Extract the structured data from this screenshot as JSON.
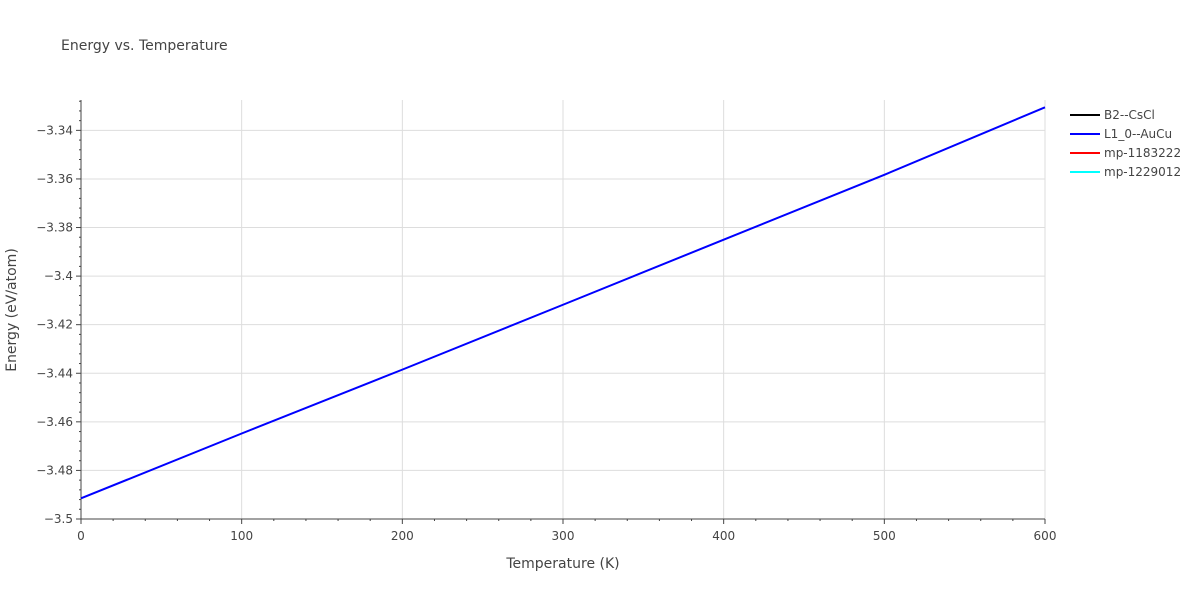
{
  "chart_data": {
    "type": "line",
    "title": "Energy vs. Temperature",
    "xlabel": "Temperature (K)",
    "ylabel": "Energy (eV/atom)",
    "xlim": [
      0,
      600
    ],
    "ylim": [
      -3.5,
      -3.3275
    ],
    "x_ticks": [
      0,
      100,
      200,
      300,
      400,
      500,
      600
    ],
    "x_tick_labels": [
      "0",
      "100",
      "200",
      "300",
      "400",
      "500",
      "600"
    ],
    "y_ticks": [
      -3.5,
      -3.48,
      -3.46,
      -3.44,
      -3.42,
      -3.4,
      -3.38,
      -3.36,
      -3.34
    ],
    "y_tick_labels": [
      "−3.5",
      "−3.48",
      "−3.46",
      "−3.44",
      "−3.42",
      "−3.4",
      "−3.38",
      "−3.36",
      "−3.34"
    ],
    "grid": true,
    "legend_position": "top-right, outside plot",
    "series": [
      {
        "name": "B2--CsCl",
        "color": "#000000",
        "x": [],
        "y": []
      },
      {
        "name": "L1_0--AuCu",
        "color": "#0000ff",
        "x": [
          0,
          100,
          200,
          300,
          400,
          500,
          600
        ],
        "y": [
          -3.4915,
          -3.4648,
          -3.4385,
          -3.4118,
          -3.385,
          -3.3583,
          -3.3305
        ]
      },
      {
        "name": "mp-1183222",
        "color": "#ff0000",
        "x": [],
        "y": []
      },
      {
        "name": "mp-1229012",
        "color": "#00ffff",
        "x": [],
        "y": []
      }
    ]
  }
}
